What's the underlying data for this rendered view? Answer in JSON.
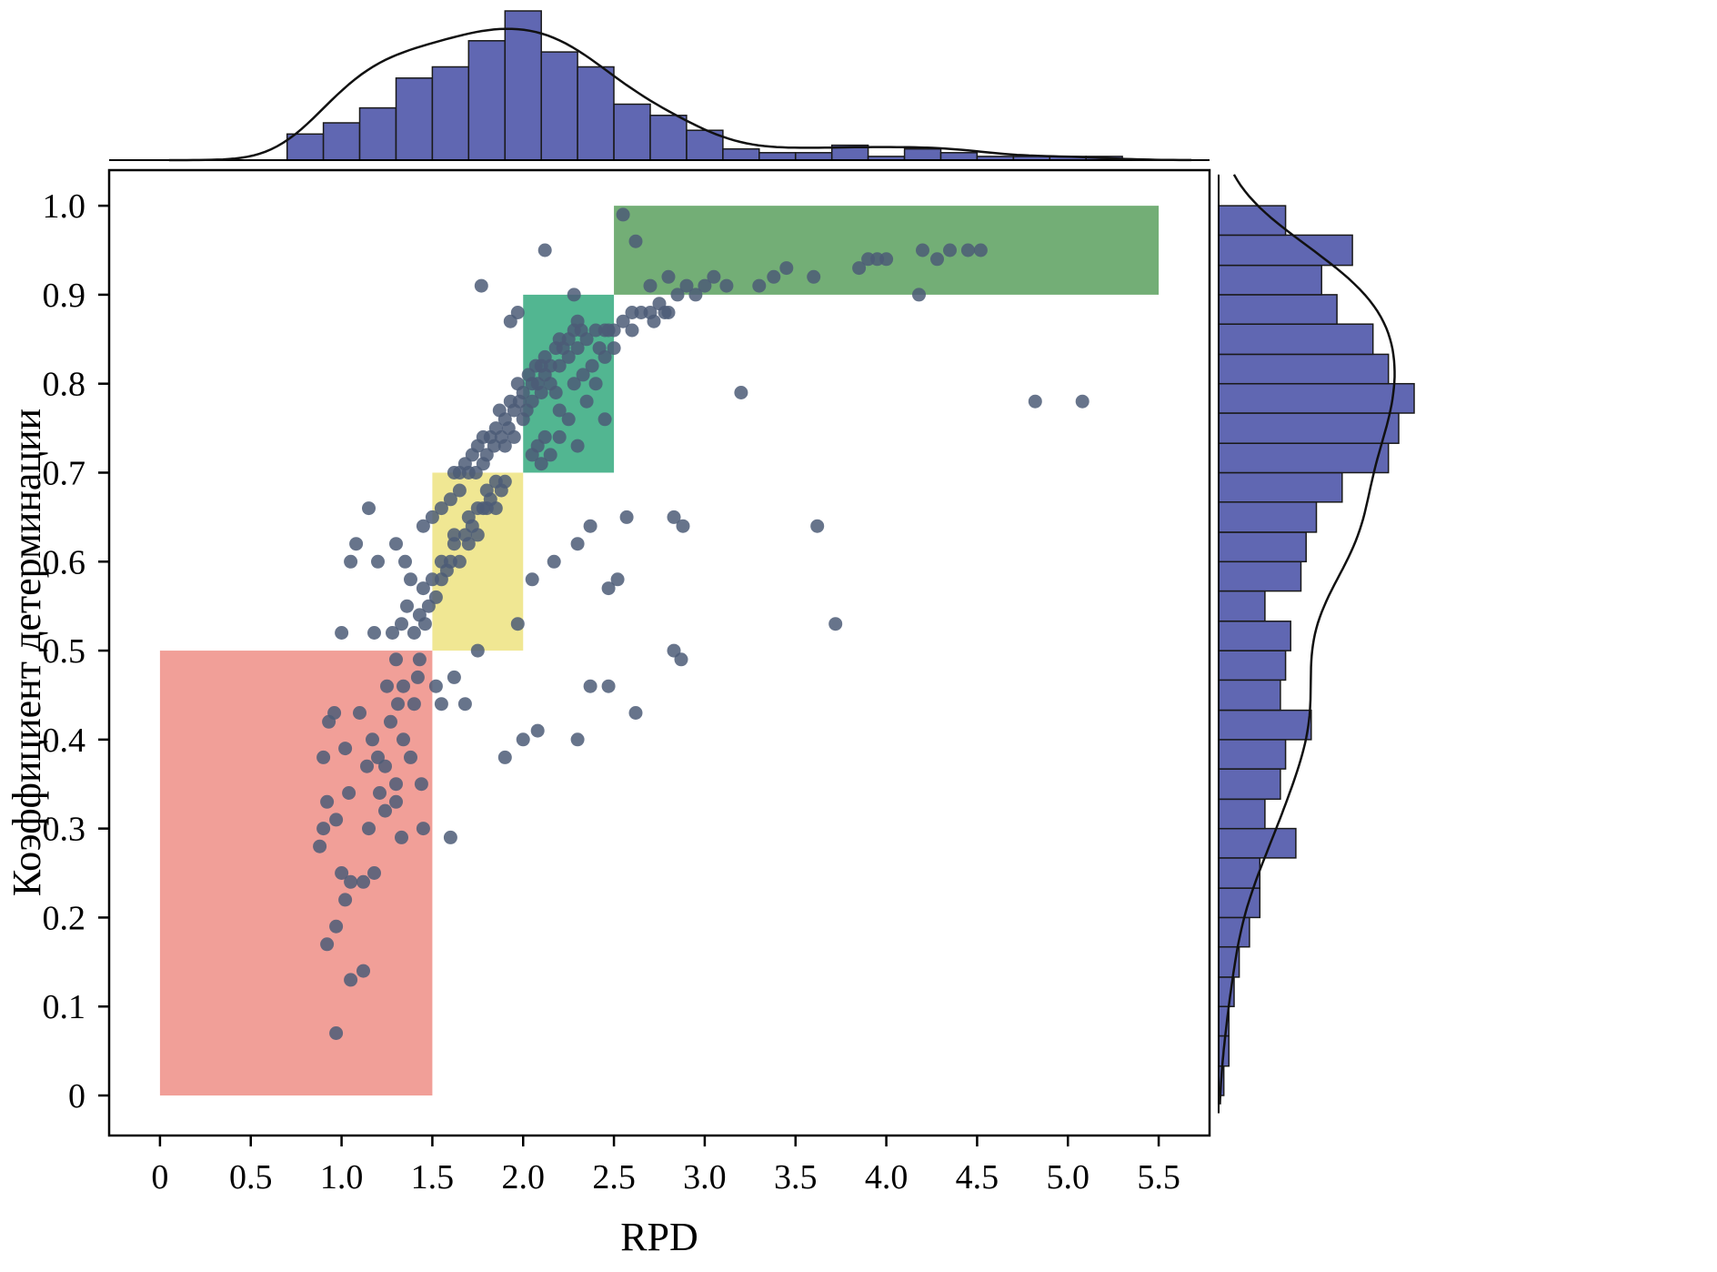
{
  "chart_data": {
    "type": "scatter",
    "title": "",
    "xlabel": "RPD",
    "ylabel": "Коэффициент детерминации",
    "xlim": [
      -0.28,
      5.78
    ],
    "ylim": [
      -0.045,
      1.04
    ],
    "grid": false,
    "legend": null,
    "xtick_values": [
      0,
      0.5,
      1.0,
      1.5,
      2.0,
      2.5,
      3.0,
      3.5,
      4.0,
      4.5,
      5.0,
      5.5
    ],
    "xtick_labels": [
      "0",
      "0.5",
      "1.0",
      "1.5",
      "2.0",
      "2.5",
      "3.0",
      "3.5",
      "4.0",
      "4.5",
      "5.0",
      "5.5"
    ],
    "ytick_values": [
      0,
      0.1,
      0.2,
      0.3,
      0.4,
      0.5,
      0.6,
      0.7,
      0.8,
      0.9,
      1.0
    ],
    "ytick_labels": [
      "0",
      "0.1",
      "0.2",
      "0.3",
      "0.4",
      "0.5",
      "0.6",
      "0.7",
      "0.8",
      "0.9",
      "1.0"
    ],
    "point_color": "#4c5c77",
    "point_radius": 7.5,
    "point_opacity": 0.85,
    "hist_fill": "#575fae",
    "hist_stroke": "#1a1a1a",
    "curve_color": "#111111",
    "regions": [
      {
        "name": "rpd-below-1.5",
        "x": [
          0,
          1.5
        ],
        "y": [
          0,
          0.5
        ],
        "color": "#ef8e86",
        "opacity": 0.85
      },
      {
        "name": "rpd-1.5-2.0",
        "x": [
          1.5,
          2.0
        ],
        "y": [
          0.5,
          0.7
        ],
        "color": "#eee487",
        "opacity": 0.9
      },
      {
        "name": "rpd-2.0-2.5",
        "x": [
          2.0,
          2.5
        ],
        "y": [
          0.7,
          0.9
        ],
        "color": "#3fae85",
        "opacity": 0.9
      },
      {
        "name": "rpd-above-2.5",
        "x": [
          2.5,
          5.5
        ],
        "y": [
          0.9,
          1.0
        ],
        "color": "#5aa05e",
        "opacity": 0.85
      }
    ],
    "points": [
      [
        0.97,
        0.07
      ],
      [
        1.05,
        0.13
      ],
      [
        1.12,
        0.14
      ],
      [
        0.92,
        0.17
      ],
      [
        0.97,
        0.19
      ],
      [
        1.02,
        0.22
      ],
      [
        1.05,
        0.24
      ],
      [
        1.12,
        0.24
      ],
      [
        1.0,
        0.25
      ],
      [
        1.18,
        0.25
      ],
      [
        0.88,
        0.28
      ],
      [
        1.33,
        0.29
      ],
      [
        1.45,
        0.3
      ],
      [
        0.9,
        0.3
      ],
      [
        0.97,
        0.31
      ],
      [
        1.15,
        0.3
      ],
      [
        1.24,
        0.32
      ],
      [
        0.92,
        0.33
      ],
      [
        1.3,
        0.33
      ],
      [
        1.04,
        0.34
      ],
      [
        1.3,
        0.35
      ],
      [
        1.14,
        0.37
      ],
      [
        1.24,
        0.37
      ],
      [
        1.2,
        0.38
      ],
      [
        0.9,
        0.38
      ],
      [
        1.02,
        0.39
      ],
      [
        1.17,
        0.4
      ],
      [
        1.34,
        0.4
      ],
      [
        0.93,
        0.42
      ],
      [
        0.96,
        0.43
      ],
      [
        1.1,
        0.43
      ],
      [
        1.27,
        0.42
      ],
      [
        1.31,
        0.44
      ],
      [
        1.4,
        0.44
      ],
      [
        1.25,
        0.46
      ],
      [
        1.34,
        0.46
      ],
      [
        1.42,
        0.47
      ],
      [
        1.3,
        0.49
      ],
      [
        1.43,
        0.49
      ],
      [
        1.38,
        0.38
      ],
      [
        1.21,
        0.34
      ],
      [
        1.44,
        0.35
      ],
      [
        1.6,
        0.29
      ],
      [
        1.52,
        0.46
      ],
      [
        1.55,
        0.44
      ],
      [
        1.62,
        0.47
      ],
      [
        1.68,
        0.44
      ],
      [
        1.75,
        0.5
      ],
      [
        1.9,
        0.38
      ],
      [
        2.0,
        0.4
      ],
      [
        2.08,
        0.41
      ],
      [
        2.3,
        0.4
      ],
      [
        2.37,
        0.46
      ],
      [
        2.47,
        0.46
      ],
      [
        2.62,
        0.43
      ],
      [
        1.97,
        0.53
      ],
      [
        1.0,
        0.52
      ],
      [
        1.18,
        0.52
      ],
      [
        1.05,
        0.6
      ],
      [
        1.08,
        0.62
      ],
      [
        1.15,
        0.66
      ],
      [
        1.2,
        0.6
      ],
      [
        1.3,
        0.62
      ],
      [
        1.28,
        0.52
      ],
      [
        1.33,
        0.53
      ],
      [
        1.36,
        0.55
      ],
      [
        1.4,
        0.52
      ],
      [
        1.43,
        0.54
      ],
      [
        1.46,
        0.53
      ],
      [
        1.38,
        0.58
      ],
      [
        1.45,
        0.57
      ],
      [
        1.5,
        0.58
      ],
      [
        1.48,
        0.55
      ],
      [
        1.52,
        0.56
      ],
      [
        1.55,
        0.58
      ],
      [
        1.55,
        0.6
      ],
      [
        1.58,
        0.59
      ],
      [
        1.6,
        0.6
      ],
      [
        1.62,
        0.62
      ],
      [
        1.65,
        0.6
      ],
      [
        1.62,
        0.63
      ],
      [
        1.68,
        0.63
      ],
      [
        1.7,
        0.62
      ],
      [
        1.72,
        0.64
      ],
      [
        1.75,
        0.63
      ],
      [
        1.7,
        0.65
      ],
      [
        1.75,
        0.66
      ],
      [
        1.78,
        0.66
      ],
      [
        1.8,
        0.66
      ],
      [
        1.82,
        0.67
      ],
      [
        1.85,
        0.66
      ],
      [
        1.8,
        0.68
      ],
      [
        1.85,
        0.69
      ],
      [
        1.88,
        0.68
      ],
      [
        1.9,
        0.69
      ],
      [
        1.45,
        0.64
      ],
      [
        1.5,
        0.65
      ],
      [
        1.35,
        0.6
      ],
      [
        1.55,
        0.66
      ],
      [
        1.6,
        0.67
      ],
      [
        1.65,
        0.68
      ],
      [
        2.05,
        0.58
      ],
      [
        2.17,
        0.6
      ],
      [
        2.3,
        0.62
      ],
      [
        2.37,
        0.64
      ],
      [
        2.47,
        0.57
      ],
      [
        2.52,
        0.58
      ],
      [
        2.57,
        0.65
      ],
      [
        2.83,
        0.65
      ],
      [
        2.88,
        0.64
      ],
      [
        2.83,
        0.5
      ],
      [
        2.87,
        0.49
      ],
      [
        3.2,
        0.79
      ],
      [
        3.62,
        0.64
      ],
      [
        3.72,
        0.53
      ],
      [
        4.82,
        0.78
      ],
      [
        5.08,
        0.78
      ],
      [
        1.7,
        0.7
      ],
      [
        1.74,
        0.7
      ],
      [
        1.72,
        0.72
      ],
      [
        1.78,
        0.71
      ],
      [
        1.8,
        0.72
      ],
      [
        1.84,
        0.73
      ],
      [
        1.82,
        0.74
      ],
      [
        1.88,
        0.74
      ],
      [
        1.9,
        0.73
      ],
      [
        1.92,
        0.75
      ],
      [
        1.95,
        0.74
      ],
      [
        1.9,
        0.76
      ],
      [
        1.95,
        0.77
      ],
      [
        2.0,
        0.76
      ],
      [
        1.98,
        0.78
      ],
      [
        2.02,
        0.77
      ],
      [
        2.05,
        0.78
      ],
      [
        2.0,
        0.79
      ],
      [
        2.05,
        0.8
      ],
      [
        2.1,
        0.79
      ],
      [
        2.08,
        0.8
      ],
      [
        2.12,
        0.81
      ],
      [
        2.15,
        0.8
      ],
      [
        2.1,
        0.82
      ],
      [
        1.85,
        0.75
      ],
      [
        1.87,
        0.77
      ],
      [
        1.93,
        0.78
      ],
      [
        1.97,
        0.8
      ],
      [
        2.03,
        0.81
      ],
      [
        2.07,
        0.82
      ],
      [
        1.75,
        0.73
      ],
      [
        1.78,
        0.74
      ],
      [
        1.68,
        0.71
      ],
      [
        1.65,
        0.7
      ],
      [
        1.62,
        0.7
      ],
      [
        2.12,
        0.83
      ],
      [
        2.15,
        0.82
      ],
      [
        2.18,
        0.84
      ],
      [
        2.2,
        0.82
      ],
      [
        2.22,
        0.84
      ],
      [
        2.25,
        0.83
      ],
      [
        2.2,
        0.85
      ],
      [
        2.25,
        0.85
      ],
      [
        2.3,
        0.84
      ],
      [
        2.28,
        0.86
      ],
      [
        2.32,
        0.86
      ],
      [
        2.35,
        0.85
      ],
      [
        2.3,
        0.87
      ],
      [
        2.4,
        0.86
      ],
      [
        2.45,
        0.86
      ],
      [
        2.1,
        0.71
      ],
      [
        2.15,
        0.72
      ],
      [
        2.2,
        0.74
      ],
      [
        2.3,
        0.73
      ],
      [
        2.25,
        0.76
      ],
      [
        2.35,
        0.78
      ],
      [
        2.4,
        0.8
      ],
      [
        2.45,
        0.83
      ],
      [
        2.12,
        0.74
      ],
      [
        2.2,
        0.77
      ],
      [
        2.28,
        0.8
      ],
      [
        2.38,
        0.82
      ],
      [
        2.08,
        0.73
      ],
      [
        2.18,
        0.79
      ],
      [
        2.33,
        0.81
      ],
      [
        2.42,
        0.84
      ],
      [
        2.47,
        0.86
      ],
      [
        2.05,
        0.72
      ],
      [
        2.45,
        0.76
      ],
      [
        2.5,
        0.84
      ],
      [
        2.5,
        0.86
      ],
      [
        2.55,
        0.87
      ],
      [
        2.6,
        0.86
      ],
      [
        2.6,
        0.88
      ],
      [
        2.65,
        0.88
      ],
      [
        2.7,
        0.88
      ],
      [
        2.75,
        0.89
      ],
      [
        2.8,
        0.88
      ],
      [
        2.85,
        0.9
      ],
      [
        2.9,
        0.91
      ],
      [
        2.95,
        0.9
      ],
      [
        3.0,
        0.91
      ],
      [
        3.05,
        0.92
      ],
      [
        2.72,
        0.87
      ],
      [
        2.78,
        0.88
      ],
      [
        2.62,
        0.96
      ],
      [
        2.55,
        0.99
      ],
      [
        2.7,
        0.91
      ],
      [
        2.8,
        0.92
      ],
      [
        1.77,
        0.91
      ],
      [
        2.12,
        0.95
      ],
      [
        1.97,
        0.88
      ],
      [
        2.28,
        0.9
      ],
      [
        1.93,
        0.87
      ],
      [
        3.12,
        0.91
      ],
      [
        3.3,
        0.91
      ],
      [
        3.38,
        0.92
      ],
      [
        3.45,
        0.93
      ],
      [
        3.6,
        0.92
      ],
      [
        3.85,
        0.93
      ],
      [
        3.9,
        0.94
      ],
      [
        3.95,
        0.94
      ],
      [
        4.0,
        0.94
      ],
      [
        4.2,
        0.95
      ],
      [
        4.28,
        0.94
      ],
      [
        4.35,
        0.95
      ],
      [
        4.45,
        0.95
      ],
      [
        4.52,
        0.95
      ],
      [
        4.18,
        0.9
      ]
    ],
    "top_hist": {
      "bin_edges": [
        0.7,
        0.9,
        1.1,
        1.3,
        1.5,
        1.7,
        1.9,
        2.1,
        2.3,
        2.5,
        2.7,
        2.9,
        3.1,
        3.3,
        3.5,
        3.7,
        3.9,
        4.1,
        4.3,
        4.5,
        4.7,
        4.9,
        5.1,
        5.3
      ],
      "counts": [
        7,
        10,
        14,
        22,
        25,
        32,
        40,
        29,
        25,
        15,
        12,
        8,
        3,
        2,
        2,
        4,
        1,
        3,
        2,
        1,
        1,
        1,
        1
      ]
    },
    "right_hist": {
      "bin_edges": [
        0,
        0.033,
        0.067,
        0.1,
        0.133,
        0.167,
        0.2,
        0.233,
        0.267,
        0.3,
        0.333,
        0.367,
        0.4,
        0.433,
        0.467,
        0.5,
        0.533,
        0.567,
        0.6,
        0.633,
        0.667,
        0.7,
        0.733,
        0.767,
        0.8,
        0.833,
        0.867,
        0.9,
        0.933,
        0.967,
        1.0
      ],
      "counts": [
        1,
        2,
        2,
        3,
        4,
        6,
        8,
        8,
        15,
        9,
        12,
        13,
        18,
        12,
        13,
        14,
        9,
        16,
        17,
        19,
        24,
        33,
        35,
        38,
        33,
        30,
        23,
        20,
        26,
        13
      ]
    }
  }
}
